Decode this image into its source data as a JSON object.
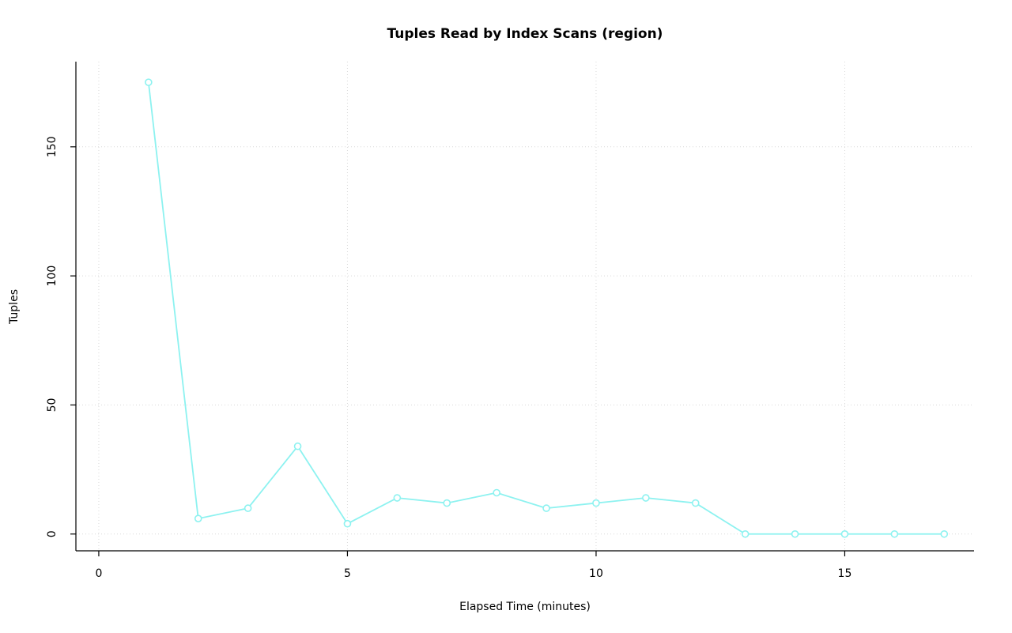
{
  "chart_data": {
    "type": "line",
    "title": "Tuples Read by Index Scans (region)",
    "xlabel": "Elapsed Time (minutes)",
    "ylabel": "Tuples",
    "x": [
      1,
      2,
      3,
      4,
      5,
      6,
      7,
      8,
      9,
      10,
      11,
      12,
      13,
      14,
      15,
      16,
      17
    ],
    "y": [
      175,
      6,
      10,
      34,
      4,
      14,
      12,
      16,
      10,
      12,
      14,
      12,
      0,
      0,
      0,
      0,
      0
    ],
    "x_ticks": [
      0,
      5,
      10,
      15
    ],
    "y_ticks": [
      0,
      50,
      100,
      150
    ],
    "xlim": [
      -0.46,
      17.6
    ],
    "ylim": [
      -6.5,
      183
    ],
    "grid": true,
    "legend_position": "none",
    "line_color": "#8df2f0",
    "marker": "open-circle",
    "marker_fill": "#ffffff",
    "grid_color": "#d9d9d9",
    "axis_color": "#000000",
    "background": "#ffffff"
  }
}
